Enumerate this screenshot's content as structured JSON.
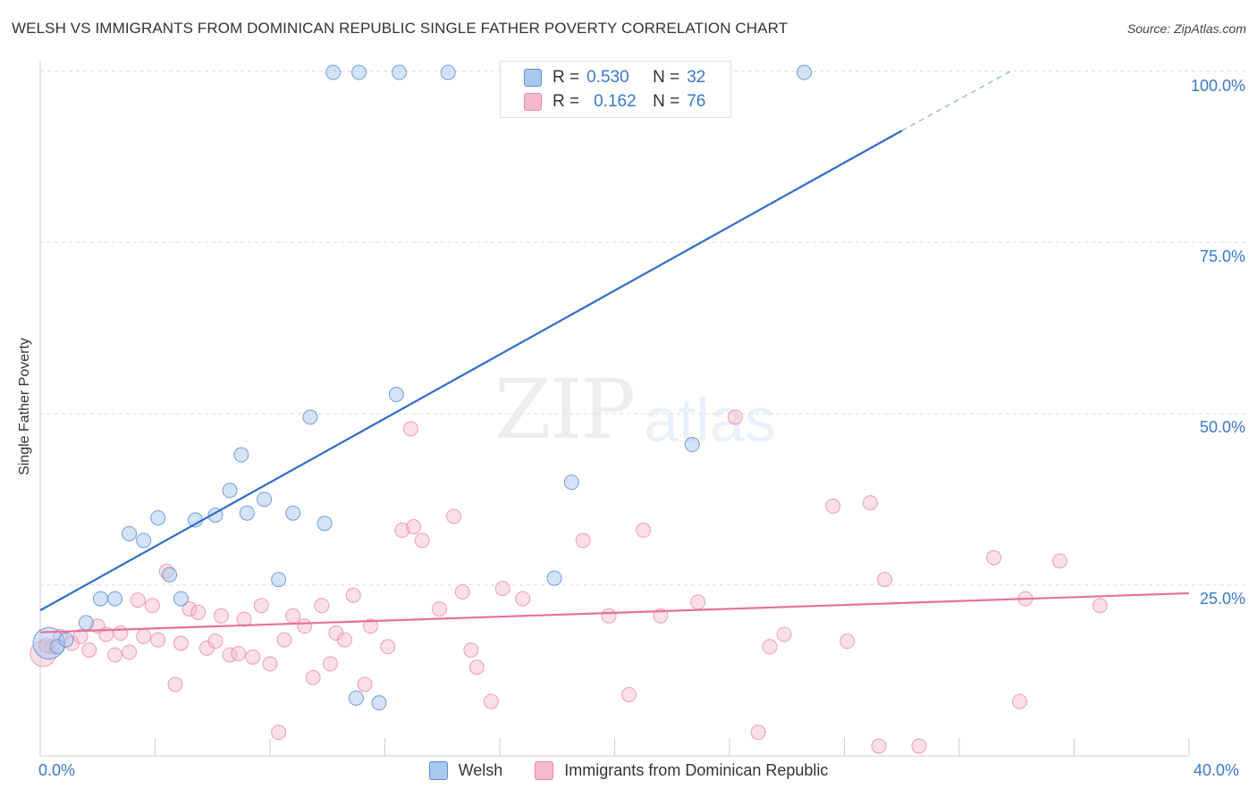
{
  "header": {
    "title": "WELSH VS IMMIGRANTS FROM DOMINICAN REPUBLIC SINGLE FATHER POVERTY CORRELATION CHART",
    "source": "Source: ZipAtlas.com"
  },
  "watermark": {
    "zip": "ZIP",
    "atlas": "atlas"
  },
  "legend": {
    "rows": [
      {
        "r_label": "R =",
        "r_value": "0.530",
        "n_label": "N =",
        "n_value": "32",
        "color": "#a9c8ee"
      },
      {
        "r_label": "R =",
        "r_value": "0.162",
        "n_label": "N =",
        "n_value": "76",
        "color": "#f5b9cb"
      }
    ]
  },
  "bottom_legend": {
    "welsh": "Welsh",
    "dominican": "Immigrants from Dominican Republic"
  },
  "colors": {
    "welsh_fill": "#a9c8ee",
    "welsh_stroke": "#5b8fd0",
    "welsh_line": "#2f6fc9",
    "dom_fill": "#f5b9cb",
    "dom_stroke": "#e68aa6",
    "dom_line": "#e6709a",
    "tick_text": "#3a78c8"
  },
  "chart_data": {
    "type": "scatter",
    "title": "WELSH VS IMMIGRANTS FROM DOMINICAN REPUBLIC SINGLE FATHER POVERTY CORRELATION CHART",
    "xlabel": "",
    "ylabel": "Single Father Poverty",
    "xlim": [
      0,
      40
    ],
    "ylim": [
      0,
      102
    ],
    "x_tick_labels": [
      "0.0%",
      "40.0%"
    ],
    "y_ticks": [
      25,
      50,
      75,
      100
    ],
    "y_tick_labels": [
      "25.0%",
      "50.0%",
      "75.0%",
      "100.0%"
    ],
    "grid": "horizontal dashed",
    "legend_position": "top-center",
    "series": [
      {
        "name": "Welsh",
        "R": 0.53,
        "N": 32,
        "points": [
          [
            0.3,
            16.5,
            2.2
          ],
          [
            0.6,
            16.0,
            1
          ],
          [
            0.9,
            17.0,
            1
          ],
          [
            1.6,
            19.5,
            1
          ],
          [
            2.1,
            23.0,
            1
          ],
          [
            2.6,
            23.0,
            1
          ],
          [
            3.1,
            32.5,
            1
          ],
          [
            3.6,
            31.5,
            1
          ],
          [
            4.1,
            34.8,
            1
          ],
          [
            4.5,
            26.5,
            1
          ],
          [
            4.9,
            23.0,
            1
          ],
          [
            5.4,
            34.5,
            1
          ],
          [
            6.1,
            35.2,
            1
          ],
          [
            6.6,
            38.8,
            1
          ],
          [
            7.0,
            44.0,
            1
          ],
          [
            7.2,
            35.5,
            1
          ],
          [
            7.8,
            37.5,
            1
          ],
          [
            8.3,
            25.8,
            1
          ],
          [
            8.8,
            35.5,
            1
          ],
          [
            9.4,
            49.5,
            1
          ],
          [
            9.9,
            34.0,
            1
          ],
          [
            10.2,
            99.8,
            1
          ],
          [
            11.1,
            99.8,
            1
          ],
          [
            11.0,
            8.5,
            1
          ],
          [
            11.8,
            7.8,
            1
          ],
          [
            12.4,
            52.8,
            1
          ],
          [
            12.5,
            99.8,
            1
          ],
          [
            14.2,
            99.8,
            1
          ],
          [
            17.9,
            26.0,
            1
          ],
          [
            18.5,
            40.0,
            1
          ],
          [
            22.7,
            45.5,
            1
          ],
          [
            26.6,
            99.8,
            1
          ]
        ],
        "trend": {
          "x0": 0,
          "y0": 21.3,
          "x1": 30.0,
          "y1": 91.3,
          "dash_to_x": 33.8,
          "dash_to_y": 100.0
        }
      },
      {
        "name": "Immigrants from Dominican Republic",
        "R": 0.162,
        "N": 76,
        "points": [
          [
            0.1,
            15.0,
            1.8
          ],
          [
            0.4,
            16.0,
            1
          ],
          [
            0.7,
            17.5,
            1
          ],
          [
            1.1,
            16.5,
            1
          ],
          [
            1.4,
            17.5,
            1
          ],
          [
            1.7,
            15.5,
            1
          ],
          [
            2.0,
            19.0,
            1
          ],
          [
            2.3,
            17.8,
            1
          ],
          [
            2.6,
            14.8,
            1
          ],
          [
            2.8,
            18.0,
            1
          ],
          [
            3.1,
            15.2,
            1
          ],
          [
            3.4,
            22.8,
            1
          ],
          [
            3.6,
            17.5,
            1
          ],
          [
            3.9,
            22.0,
            1
          ],
          [
            4.1,
            17.0,
            1
          ],
          [
            4.4,
            27.0,
            1
          ],
          [
            4.7,
            10.5,
            1
          ],
          [
            4.9,
            16.5,
            1
          ],
          [
            5.2,
            21.5,
            1
          ],
          [
            5.5,
            21.0,
            1
          ],
          [
            5.8,
            15.8,
            1
          ],
          [
            6.1,
            16.8,
            1
          ],
          [
            6.3,
            20.5,
            1
          ],
          [
            6.6,
            14.8,
            1
          ],
          [
            6.9,
            15.0,
            1
          ],
          [
            7.1,
            20.0,
            1
          ],
          [
            7.4,
            14.5,
            1
          ],
          [
            7.7,
            22.0,
            1
          ],
          [
            8.0,
            13.5,
            1
          ],
          [
            8.3,
            3.5,
            1
          ],
          [
            8.5,
            17.0,
            1
          ],
          [
            8.8,
            20.5,
            1
          ],
          [
            9.2,
            19.0,
            1
          ],
          [
            9.5,
            11.5,
            1
          ],
          [
            9.8,
            22.0,
            1
          ],
          [
            10.1,
            13.5,
            1
          ],
          [
            10.3,
            18.0,
            1
          ],
          [
            10.6,
            17.0,
            1
          ],
          [
            10.9,
            23.5,
            1
          ],
          [
            11.3,
            10.5,
            1
          ],
          [
            11.5,
            19.0,
            1
          ],
          [
            12.1,
            16.0,
            1
          ],
          [
            12.6,
            33.0,
            1
          ],
          [
            12.9,
            47.8,
            1
          ],
          [
            13.0,
            33.5,
            1
          ],
          [
            13.3,
            31.5,
            1
          ],
          [
            13.9,
            21.5,
            1
          ],
          [
            14.4,
            35.0,
            1
          ],
          [
            14.7,
            24.0,
            1
          ],
          [
            15.0,
            15.5,
            1
          ],
          [
            15.2,
            13.0,
            1
          ],
          [
            15.7,
            8.0,
            1
          ],
          [
            16.1,
            24.5,
            1
          ],
          [
            16.8,
            23.0,
            1
          ],
          [
            18.9,
            31.5,
            1
          ],
          [
            19.8,
            20.5,
            1
          ],
          [
            20.5,
            9.0,
            1
          ],
          [
            21.0,
            33.0,
            1
          ],
          [
            21.6,
            20.5,
            1
          ],
          [
            22.9,
            22.5,
            1
          ],
          [
            24.2,
            49.5,
            1
          ],
          [
            25.0,
            3.5,
            1
          ],
          [
            25.4,
            16.0,
            1
          ],
          [
            25.9,
            17.8,
            1
          ],
          [
            27.6,
            36.5,
            1
          ],
          [
            28.1,
            16.8,
            1
          ],
          [
            28.9,
            37.0,
            1
          ],
          [
            29.2,
            1.5,
            1
          ],
          [
            29.4,
            25.8,
            1
          ],
          [
            30.6,
            1.5,
            1
          ],
          [
            33.2,
            29.0,
            1
          ],
          [
            34.1,
            8.0,
            1
          ],
          [
            34.3,
            23.0,
            1
          ],
          [
            35.5,
            28.5,
            1
          ],
          [
            36.9,
            22.0,
            1
          ],
          [
            0.2,
            16.2,
            1
          ]
        ],
        "trend": {
          "x0": 0,
          "y0": 18.1,
          "x1": 40.0,
          "y1": 23.8
        }
      }
    ]
  }
}
